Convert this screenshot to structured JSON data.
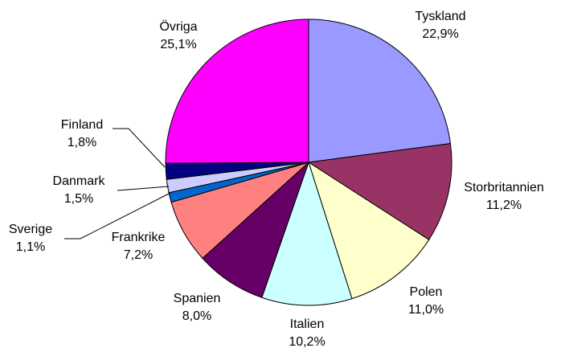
{
  "chart_data": {
    "type": "pie",
    "categories": [
      "Tyskland",
      "Storbritannien",
      "Polen",
      "Italien",
      "Spanien",
      "Frankrike",
      "Sverige",
      "Danmark",
      "Finland",
      "Övriga"
    ],
    "values": [
      22.9,
      11.2,
      11.0,
      10.2,
      8.0,
      7.2,
      1.1,
      1.5,
      1.8,
      25.1
    ],
    "value_labels": [
      "22,9%",
      "11,2%",
      "11,0%",
      "10,2%",
      "8,0%",
      "7,2%",
      "1,1%",
      "1,5%",
      "1,8%",
      "25,1%"
    ],
    "colors": [
      "#9999ff",
      "#993366",
      "#ffffcc",
      "#ccffff",
      "#660066",
      "#ff8080",
      "#0066cc",
      "#ccccff",
      "#000080",
      "#ff00ff"
    ]
  }
}
